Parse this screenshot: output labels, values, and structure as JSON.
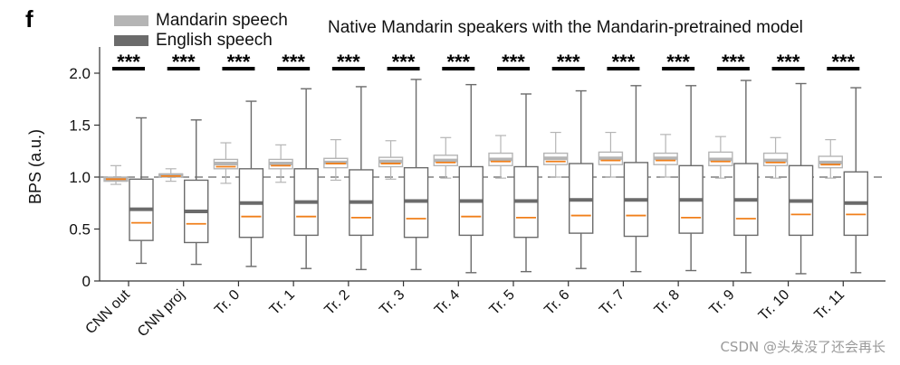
{
  "panel_label": "f",
  "watermark": "CSDN @头发没了还会再长",
  "colors": {
    "mandarin": "#b5b5b5",
    "english": "#6b6b6b",
    "median": "#f07f1a",
    "axis": "#333333",
    "reference_line": "#808080"
  },
  "chart_data": {
    "type": "box",
    "title": "Native Mandarin speakers with the Mandarin-pretrained model",
    "xlabel": "",
    "ylabel": "BPS (a.u.)",
    "ylim": [
      0,
      2.2
    ],
    "yticks": [
      0,
      0.5,
      1.0,
      1.5,
      2.0
    ],
    "ytick_labels": [
      "0",
      "0.5",
      "1.0",
      "1.5",
      "2.0"
    ],
    "reference_line": 1.0,
    "grid": false,
    "legend_position": "top-left",
    "significance": "***",
    "categories": [
      "CNN out",
      "CNN proj",
      "Tr. 0",
      "Tr. 1",
      "Tr. 2",
      "Tr. 3",
      "Tr. 4",
      "Tr. 5",
      "Tr. 6",
      "Tr. 7",
      "Tr. 8",
      "Tr. 9",
      "Tr. 10",
      "Tr. 11"
    ],
    "series": [
      {
        "name": "Mandarin speech",
        "color": "#b5b5b5",
        "boxes": [
          {
            "whisker_low": 0.93,
            "q1": 0.96,
            "median": 0.98,
            "mean": 0.98,
            "q3": 1.0,
            "whisker_high": 1.11
          },
          {
            "whisker_low": 0.96,
            "q1": 1.0,
            "median": 1.01,
            "mean": 1.02,
            "q3": 1.03,
            "whisker_high": 1.08
          },
          {
            "whisker_low": 0.94,
            "q1": 1.08,
            "median": 1.1,
            "mean": 1.13,
            "q3": 1.17,
            "whisker_high": 1.33
          },
          {
            "whisker_low": 0.95,
            "q1": 1.08,
            "median": 1.11,
            "mean": 1.13,
            "q3": 1.17,
            "whisker_high": 1.31
          },
          {
            "whisker_low": 0.97,
            "q1": 1.09,
            "median": 1.13,
            "mean": 1.14,
            "q3": 1.18,
            "whisker_high": 1.36
          },
          {
            "whisker_low": 0.98,
            "q1": 1.1,
            "median": 1.13,
            "mean": 1.15,
            "q3": 1.19,
            "whisker_high": 1.35
          },
          {
            "whisker_low": 0.99,
            "q1": 1.11,
            "median": 1.14,
            "mean": 1.16,
            "q3": 1.21,
            "whisker_high": 1.38
          },
          {
            "whisker_low": 0.99,
            "q1": 1.11,
            "median": 1.15,
            "mean": 1.17,
            "q3": 1.23,
            "whisker_high": 1.4
          },
          {
            "whisker_low": 1.0,
            "q1": 1.12,
            "median": 1.15,
            "mean": 1.18,
            "q3": 1.23,
            "whisker_high": 1.43
          },
          {
            "whisker_low": 1.0,
            "q1": 1.12,
            "median": 1.16,
            "mean": 1.18,
            "q3": 1.24,
            "whisker_high": 1.43
          },
          {
            "whisker_low": 1.0,
            "q1": 1.12,
            "median": 1.16,
            "mean": 1.18,
            "q3": 1.23,
            "whisker_high": 1.41
          },
          {
            "whisker_low": 0.99,
            "q1": 1.11,
            "median": 1.15,
            "mean": 1.17,
            "q3": 1.24,
            "whisker_high": 1.39
          },
          {
            "whisker_low": 0.99,
            "q1": 1.11,
            "median": 1.14,
            "mean": 1.16,
            "q3": 1.23,
            "whisker_high": 1.38
          },
          {
            "whisker_low": 0.99,
            "q1": 1.09,
            "median": 1.12,
            "mean": 1.14,
            "q3": 1.2,
            "whisker_high": 1.36
          }
        ]
      },
      {
        "name": "English speech",
        "color": "#6b6b6b",
        "boxes": [
          {
            "whisker_low": 0.17,
            "q1": 0.39,
            "median": 0.56,
            "mean": 0.69,
            "q3": 0.98,
            "whisker_high": 1.57
          },
          {
            "whisker_low": 0.16,
            "q1": 0.37,
            "median": 0.55,
            "mean": 0.67,
            "q3": 0.97,
            "whisker_high": 1.55
          },
          {
            "whisker_low": 0.14,
            "q1": 0.42,
            "median": 0.62,
            "mean": 0.75,
            "q3": 1.08,
            "whisker_high": 1.73
          },
          {
            "whisker_low": 0.12,
            "q1": 0.44,
            "median": 0.62,
            "mean": 0.76,
            "q3": 1.08,
            "whisker_high": 1.85
          },
          {
            "whisker_low": 0.11,
            "q1": 0.44,
            "median": 0.61,
            "mean": 0.76,
            "q3": 1.07,
            "whisker_high": 1.87
          },
          {
            "whisker_low": 0.11,
            "q1": 0.42,
            "median": 0.6,
            "mean": 0.77,
            "q3": 1.09,
            "whisker_high": 1.94
          },
          {
            "whisker_low": 0.08,
            "q1": 0.44,
            "median": 0.62,
            "mean": 0.77,
            "q3": 1.1,
            "whisker_high": 1.89
          },
          {
            "whisker_low": 0.09,
            "q1": 0.42,
            "median": 0.61,
            "mean": 0.77,
            "q3": 1.1,
            "whisker_high": 1.8
          },
          {
            "whisker_low": 0.12,
            "q1": 0.46,
            "median": 0.63,
            "mean": 0.78,
            "q3": 1.13,
            "whisker_high": 1.83
          },
          {
            "whisker_low": 0.09,
            "q1": 0.43,
            "median": 0.63,
            "mean": 0.78,
            "q3": 1.14,
            "whisker_high": 1.88
          },
          {
            "whisker_low": 0.1,
            "q1": 0.46,
            "median": 0.61,
            "mean": 0.78,
            "q3": 1.11,
            "whisker_high": 1.88
          },
          {
            "whisker_low": 0.08,
            "q1": 0.44,
            "median": 0.6,
            "mean": 0.78,
            "q3": 1.13,
            "whisker_high": 1.93
          },
          {
            "whisker_low": 0.07,
            "q1": 0.44,
            "median": 0.64,
            "mean": 0.77,
            "q3": 1.11,
            "whisker_high": 1.9
          },
          {
            "whisker_low": 0.08,
            "q1": 0.44,
            "median": 0.64,
            "mean": 0.75,
            "q3": 1.05,
            "whisker_high": 1.86
          }
        ]
      }
    ]
  }
}
